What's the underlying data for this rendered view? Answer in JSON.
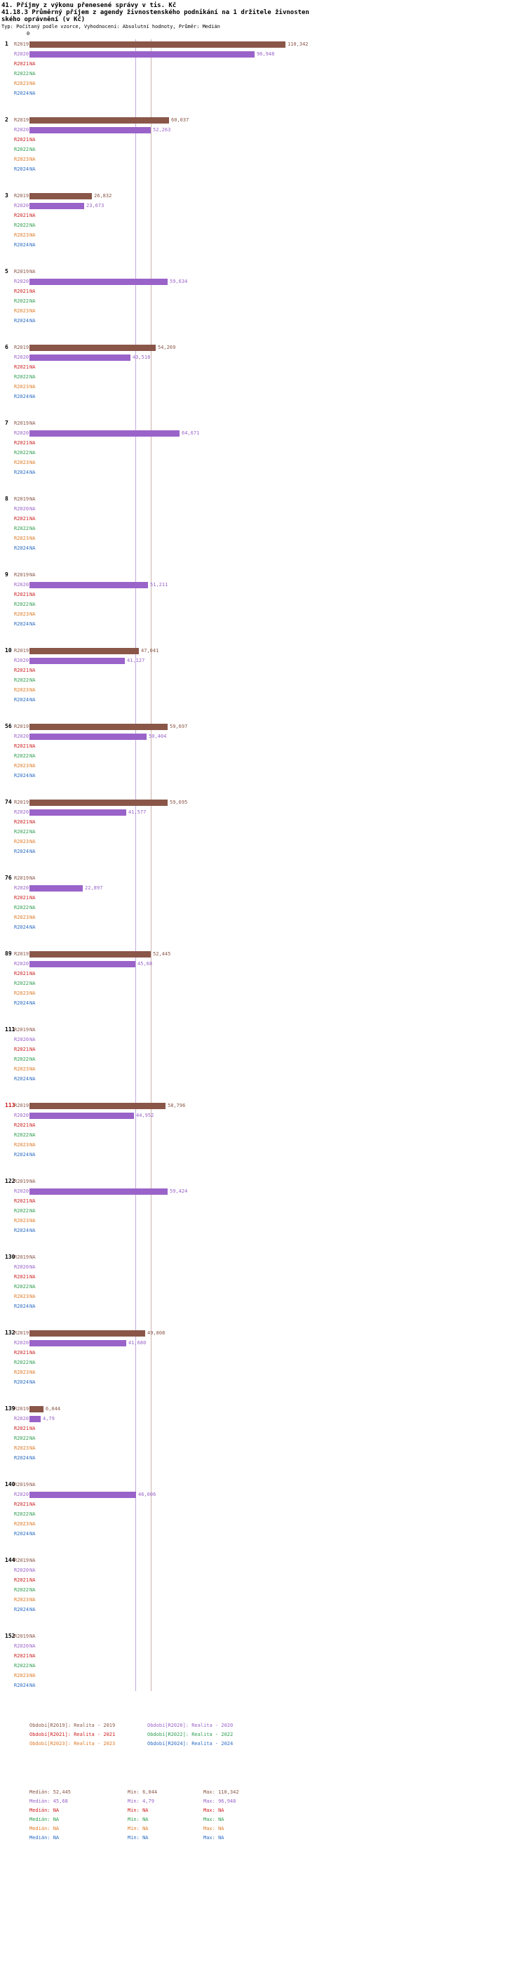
{
  "title_line1": "41. Příjmy z výkonu přenesené správy v tis. Kč",
  "title_line2": "41.18.3 Průměrný příjem z agendy živnostenského podnikání na 1 držitele živnostenského oprávnění (v Kč)",
  "subtitle": "Typ: Počítaný podle vzorce, Vyhodnocení: Absolutní hodnoty, Průměr: Medián",
  "axis": {
    "zero_label": "0"
  },
  "periods": [
    "R2019",
    "R2020",
    "R2021",
    "R2022",
    "R2023",
    "R2024"
  ],
  "colors": {
    "R2019": "#8a5648",
    "R2020": "#9a63c9",
    "R2021": "#cc2222",
    "R2022": "#2e9e4f",
    "R2023": "#e07b28",
    "R2024": "#2b6cc4",
    "group_label": "#000000",
    "group_label_highlight": "#cc2222",
    "median_line_R2019": "#c9b4ab",
    "median_line_R2020": "#c4a9dd"
  },
  "chart_data": {
    "type": "bar",
    "orientation": "horizontal",
    "title": "41.18.3 Průměrný příjem z agendy živnostenského podnikání na 1 držitele živnostenského oprávnění (v Kč)",
    "value_unit": "Kč",
    "x_min": 0,
    "scale_max_value": 110342,
    "grid": false,
    "median_lines": [
      {
        "series": "R2019",
        "value": 52445
      },
      {
        "series": "R2020",
        "value": 45680
      }
    ],
    "groups": [
      {
        "id": "1",
        "highlight": false,
        "values": [
          110342,
          96948,
          null,
          null,
          null,
          null
        ],
        "labels": [
          "110,342",
          "96,948",
          "NA",
          "NA",
          "NA",
          "NA"
        ]
      },
      {
        "id": "2",
        "highlight": false,
        "values": [
          60037,
          52263,
          null,
          null,
          null,
          null
        ],
        "labels": [
          "60,037",
          "52,263",
          "NA",
          "NA",
          "NA",
          "NA"
        ]
      },
      {
        "id": "3",
        "highlight": false,
        "values": [
          26832,
          23673,
          null,
          null,
          null,
          null
        ],
        "labels": [
          "26,832",
          "23,673",
          "NA",
          "NA",
          "NA",
          "NA"
        ]
      },
      {
        "id": "5",
        "highlight": false,
        "values": [
          null,
          59634,
          null,
          null,
          null,
          null
        ],
        "labels": [
          "NA",
          "59,634",
          "NA",
          "NA",
          "NA",
          "NA"
        ]
      },
      {
        "id": "6",
        "highlight": false,
        "values": [
          54269,
          43518,
          null,
          null,
          null,
          null
        ],
        "labels": [
          "54,269",
          "43,518",
          "NA",
          "NA",
          "NA",
          "NA"
        ]
      },
      {
        "id": "7",
        "highlight": false,
        "values": [
          null,
          64671,
          null,
          null,
          null,
          null
        ],
        "labels": [
          "NA",
          "64,671",
          "NA",
          "NA",
          "NA",
          "NA"
        ]
      },
      {
        "id": "8",
        "highlight": false,
        "values": [
          null,
          null,
          null,
          null,
          null,
          null
        ],
        "labels": [
          "NA",
          "NA",
          "NA",
          "NA",
          "NA",
          "NA"
        ]
      },
      {
        "id": "9",
        "highlight": false,
        "values": [
          null,
          51211,
          null,
          null,
          null,
          null
        ],
        "labels": [
          "NA",
          "51,211",
          "NA",
          "NA",
          "NA",
          "NA"
        ]
      },
      {
        "id": "10",
        "highlight": false,
        "values": [
          47041,
          41127,
          null,
          null,
          null,
          null
        ],
        "labels": [
          "47,041",
          "41,127",
          "NA",
          "NA",
          "NA",
          "NA"
        ]
      },
      {
        "id": "56",
        "highlight": false,
        "values": [
          59697,
          50404,
          null,
          null,
          null,
          null
        ],
        "labels": [
          "59,697",
          "50,404",
          "NA",
          "NA",
          "NA",
          "NA"
        ]
      },
      {
        "id": "74",
        "highlight": false,
        "values": [
          59695,
          41577,
          null,
          null,
          null,
          null
        ],
        "labels": [
          "59,695",
          "41,577",
          "NA",
          "NA",
          "NA",
          "NA"
        ]
      },
      {
        "id": "76",
        "highlight": false,
        "values": [
          null,
          22897,
          null,
          null,
          null,
          null
        ],
        "labels": [
          "NA",
          "22,897",
          "NA",
          "NA",
          "NA",
          "NA"
        ]
      },
      {
        "id": "89",
        "highlight": false,
        "values": [
          52445,
          45680,
          null,
          null,
          null,
          null
        ],
        "labels": [
          "52,445",
          "45,68",
          "NA",
          "NA",
          "NA",
          "NA"
        ]
      },
      {
        "id": "111",
        "highlight": false,
        "values": [
          null,
          null,
          null,
          null,
          null,
          null
        ],
        "labels": [
          "NA",
          "NA",
          "NA",
          "NA",
          "NA",
          "NA"
        ]
      },
      {
        "id": "113",
        "highlight": true,
        "values": [
          58796,
          44952,
          null,
          null,
          null,
          null
        ],
        "labels": [
          "58,796",
          "44,952",
          "NA",
          "NA",
          "NA",
          "NA"
        ]
      },
      {
        "id": "122",
        "highlight": false,
        "values": [
          null,
          59424,
          null,
          null,
          null,
          null
        ],
        "labels": [
          "NA",
          "59,424",
          "NA",
          "NA",
          "NA",
          "NA"
        ]
      },
      {
        "id": "130",
        "highlight": false,
        "values": [
          null,
          null,
          null,
          null,
          null,
          null
        ],
        "labels": [
          "NA",
          "NA",
          "NA",
          "NA",
          "NA",
          "NA"
        ]
      },
      {
        "id": "132",
        "highlight": false,
        "values": [
          49808,
          41680,
          null,
          null,
          null,
          null
        ],
        "labels": [
          "49,808",
          "41,680",
          "NA",
          "NA",
          "NA",
          "NA"
        ]
      },
      {
        "id": "139",
        "highlight": false,
        "values": [
          6044,
          4790,
          null,
          null,
          null,
          null
        ],
        "labels": [
          "6,044",
          "4,79",
          "NA",
          "NA",
          "NA",
          "NA"
        ]
      },
      {
        "id": "140",
        "highlight": false,
        "values": [
          null,
          46006,
          null,
          null,
          null,
          null
        ],
        "labels": [
          "NA",
          "46,006",
          "NA",
          "NA",
          "NA",
          "NA"
        ]
      },
      {
        "id": "144",
        "highlight": false,
        "values": [
          null,
          null,
          null,
          null,
          null,
          null
        ],
        "labels": [
          "NA",
          "NA",
          "NA",
          "NA",
          "NA",
          "NA"
        ]
      },
      {
        "id": "152",
        "highlight": false,
        "values": [
          null,
          null,
          null,
          null,
          null,
          null
        ],
        "labels": [
          "NA",
          "NA",
          "NA",
          "NA",
          "NA",
          "NA"
        ]
      }
    ]
  },
  "legend": [
    {
      "series": "R2019",
      "label": "Období[R2019]: Realita - 2019"
    },
    {
      "series": "R2020",
      "label": "Období[R2020]: Realita - 2020"
    },
    {
      "series": "R2021",
      "label": "Období[R2021]: Realita - 2021"
    },
    {
      "series": "R2022",
      "label": "Období[R2022]: Realita - 2022"
    },
    {
      "series": "R2023",
      "label": "Období[R2023]: Realita - 2023"
    },
    {
      "series": "R2024",
      "label": "Období[R2024]: Realita - 2024"
    }
  ],
  "stats": [
    {
      "series": "R2019",
      "median": "Medián: 52,445",
      "min": "Min: 6,044",
      "max": "Max: 110,342"
    },
    {
      "series": "R2020",
      "median": "Medián: 45,68",
      "min": "Min: 4,79",
      "max": "Max: 96,948"
    },
    {
      "series": "R2021",
      "median": "Medián: NA",
      "min": "Min: NA",
      "max": "Max: NA"
    },
    {
      "series": "R2022",
      "median": "Medián: NA",
      "min": "Min: NA",
      "max": "Max: NA"
    },
    {
      "series": "R2023",
      "median": "Medián: NA",
      "min": "Min: NA",
      "max": "Max: NA"
    },
    {
      "series": "R2024",
      "median": "Medián: NA",
      "min": "Min: NA",
      "max": "Max: NA"
    }
  ]
}
